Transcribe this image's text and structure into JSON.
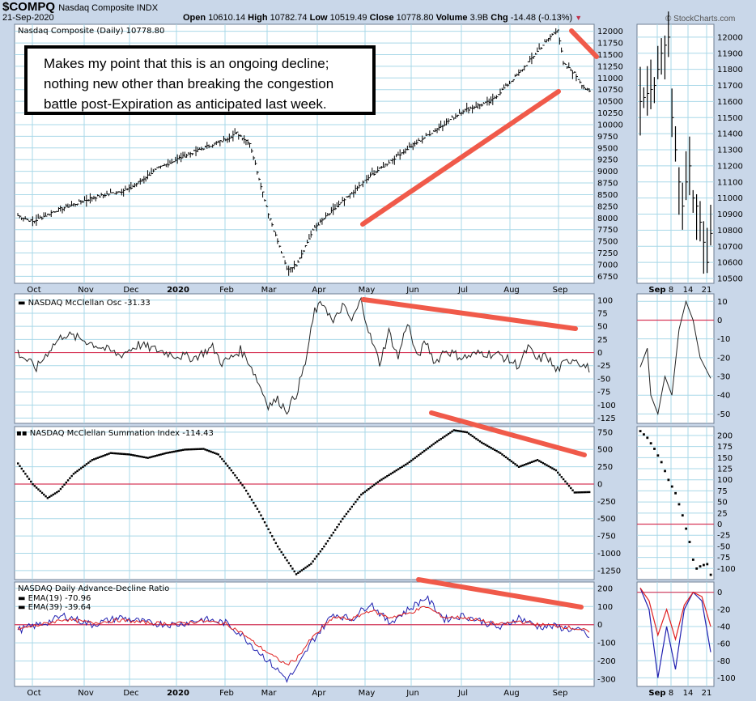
{
  "header": {
    "symbol": "$COMPQ",
    "name": "Nasdaq Composite INDX",
    "date": "21-Sep-2020",
    "open_label": "Open",
    "open": "10610.14",
    "high_label": "High",
    "high": "10782.74",
    "low_label": "Low",
    "low": "10519.49",
    "close_label": "Close",
    "close": "10778.80",
    "volume_label": "Volume",
    "volume": "3.9B",
    "chg_label": "Chg",
    "chg": "-14.48 (-0.13%)",
    "watermark": "© StockCharts.com"
  },
  "annotation": {
    "line1": "Makes my point that this is an ongoing decline;",
    "line2": "nothing new other than breaking the congestion",
    "line3": "battle post-Expiration as anticipated last week."
  },
  "colors": {
    "frame": "#c9d7e9",
    "grid": "#a9d8e8",
    "zero_line": "#d83a5a",
    "trend": "#f05a4a",
    "ema19": "#2020b0",
    "ema39": "#e02020"
  },
  "chart_data": [
    {
      "type": "ohlc",
      "title": "Nasdaq Composite (Daily) 10778.80",
      "x_months": [
        "Oct",
        "Nov",
        "Dec",
        "2020",
        "Feb",
        "Mar",
        "Apr",
        "May",
        "Jun",
        "Jul",
        "Aug",
        "Sep"
      ],
      "yticks": [
        6750,
        7000,
        7250,
        7500,
        7750,
        8000,
        8250,
        8500,
        8750,
        9000,
        9250,
        9500,
        9750,
        10000,
        10250,
        10500,
        10750,
        11000,
        11250,
        11500,
        11750,
        12000
      ],
      "ylim": [
        6600,
        12150
      ],
      "anchors": [
        [
          0,
          8050
        ],
        [
          8,
          7920
        ],
        [
          20,
          8150
        ],
        [
          40,
          8430
        ],
        [
          60,
          8620
        ],
        [
          75,
          9050
        ],
        [
          88,
          9300
        ],
        [
          100,
          9500
        ],
        [
          110,
          9650
        ],
        [
          118,
          9820
        ],
        [
          125,
          9600
        ],
        [
          135,
          8100
        ],
        [
          145,
          6900
        ],
        [
          150,
          7000
        ],
        [
          160,
          7800
        ],
        [
          175,
          8350
        ],
        [
          190,
          8900
        ],
        [
          205,
          9350
        ],
        [
          220,
          9750
        ],
        [
          240,
          10300
        ],
        [
          255,
          10500
        ],
        [
          270,
          11100
        ],
        [
          285,
          11800
        ],
        [
          291,
          12050
        ],
        [
          294,
          11300
        ],
        [
          300,
          11100
        ],
        [
          305,
          10800
        ],
        [
          308,
          10700
        ]
      ]
    },
    {
      "type": "line",
      "title": "NASDAQ McClellan Osc -31.33",
      "yticks": [
        -125,
        -100,
        -75,
        -50,
        -25,
        0,
        25,
        50,
        75,
        100
      ],
      "ylim": [
        -135,
        112
      ],
      "anchors": [
        [
          0,
          0
        ],
        [
          10,
          -30
        ],
        [
          18,
          10
        ],
        [
          25,
          35
        ],
        [
          35,
          25
        ],
        [
          45,
          10
        ],
        [
          55,
          -5
        ],
        [
          65,
          15
        ],
        [
          75,
          5
        ],
        [
          85,
          -5
        ],
        [
          95,
          -10
        ],
        [
          105,
          10
        ],
        [
          110,
          -20
        ],
        [
          115,
          -10
        ],
        [
          120,
          5
        ],
        [
          125,
          -20
        ],
        [
          130,
          -60
        ],
        [
          135,
          -100
        ],
        [
          140,
          -90
        ],
        [
          145,
          -110
        ],
        [
          150,
          -80
        ],
        [
          155,
          -20
        ],
        [
          160,
          80
        ],
        [
          165,
          95
        ],
        [
          170,
          55
        ],
        [
          175,
          90
        ],
        [
          180,
          60
        ],
        [
          185,
          100
        ],
        [
          190,
          30
        ],
        [
          195,
          -20
        ],
        [
          200,
          40
        ],
        [
          205,
          -10
        ],
        [
          210,
          60
        ],
        [
          215,
          -10
        ],
        [
          220,
          20
        ],
        [
          225,
          -20
        ],
        [
          230,
          5
        ],
        [
          240,
          -10
        ],
        [
          250,
          0
        ],
        [
          260,
          -5
        ],
        [
          270,
          -25
        ],
        [
          275,
          10
        ],
        [
          280,
          -15
        ],
        [
          285,
          -5
        ],
        [
          290,
          -35
        ],
        [
          295,
          -20
        ],
        [
          300,
          -10
        ],
        [
          305,
          -25
        ],
        [
          308,
          -31
        ]
      ]
    },
    {
      "type": "scatter",
      "title": "NASDAQ McClellan Summation Index -114.43",
      "yticks": [
        -1250,
        -1000,
        -750,
        -500,
        -250,
        0,
        250,
        500,
        750
      ],
      "ylim": [
        -1380,
        830
      ],
      "anchors": [
        [
          0,
          300
        ],
        [
          8,
          0
        ],
        [
          16,
          -200
        ],
        [
          22,
          -100
        ],
        [
          30,
          150
        ],
        [
          40,
          350
        ],
        [
          50,
          450
        ],
        [
          60,
          430
        ],
        [
          70,
          380
        ],
        [
          80,
          450
        ],
        [
          90,
          500
        ],
        [
          100,
          510
        ],
        [
          108,
          430
        ],
        [
          115,
          200
        ],
        [
          122,
          -50
        ],
        [
          130,
          -400
        ],
        [
          140,
          -900
        ],
        [
          150,
          -1300
        ],
        [
          158,
          -1150
        ],
        [
          165,
          -900
        ],
        [
          175,
          -500
        ],
        [
          185,
          -150
        ],
        [
          195,
          50
        ],
        [
          210,
          300
        ],
        [
          225,
          600
        ],
        [
          235,
          780
        ],
        [
          242,
          750
        ],
        [
          250,
          600
        ],
        [
          260,
          450
        ],
        [
          270,
          250
        ],
        [
          280,
          350
        ],
        [
          290,
          200
        ],
        [
          300,
          -120
        ],
        [
          308,
          -114
        ]
      ]
    },
    {
      "type": "line",
      "title": "NASDAQ Daily Advance-Decline Ratio",
      "series": [
        {
          "name": "EMA(19) -70.96",
          "anchors": [
            [
              0,
              -30
            ],
            [
              15,
              10
            ],
            [
              25,
              50
            ],
            [
              40,
              0
            ],
            [
              55,
              40
            ],
            [
              70,
              10
            ],
            [
              85,
              0
            ],
            [
              100,
              30
            ],
            [
              112,
              10
            ],
            [
              120,
              -50
            ],
            [
              130,
              -150
            ],
            [
              140,
              -250
            ],
            [
              145,
              -300
            ],
            [
              150,
              -250
            ],
            [
              158,
              -100
            ],
            [
              170,
              60
            ],
            [
              180,
              30
            ],
            [
              190,
              120
            ],
            [
              200,
              10
            ],
            [
              210,
              80
            ],
            [
              220,
              150
            ],
            [
              230,
              30
            ],
            [
              240,
              50
            ],
            [
              250,
              20
            ],
            [
              260,
              -20
            ],
            [
              270,
              40
            ],
            [
              280,
              -10
            ],
            [
              290,
              -10
            ],
            [
              300,
              -30
            ],
            [
              305,
              -40
            ],
            [
              308,
              -71
            ]
          ]
        },
        {
          "name": "EMA(39) -39.64",
          "anchors": [
            [
              0,
              -25
            ],
            [
              15,
              5
            ],
            [
              25,
              30
            ],
            [
              40,
              10
            ],
            [
              55,
              25
            ],
            [
              70,
              10
            ],
            [
              85,
              5
            ],
            [
              100,
              20
            ],
            [
              112,
              5
            ],
            [
              120,
              -40
            ],
            [
              130,
              -120
            ],
            [
              140,
              -190
            ],
            [
              145,
              -220
            ],
            [
              150,
              -190
            ],
            [
              158,
              -80
            ],
            [
              170,
              40
            ],
            [
              180,
              30
            ],
            [
              190,
              80
            ],
            [
              200,
              40
            ],
            [
              210,
              60
            ],
            [
              220,
              100
            ],
            [
              230,
              40
            ],
            [
              240,
              40
            ],
            [
              250,
              20
            ],
            [
              260,
              0
            ],
            [
              270,
              20
            ],
            [
              280,
              0
            ],
            [
              290,
              -5
            ],
            [
              300,
              -20
            ],
            [
              305,
              -30
            ],
            [
              308,
              -40
            ]
          ]
        }
      ],
      "yticks": [
        -300,
        -200,
        -100,
        0,
        100,
        200
      ],
      "ylim": [
        -340,
        235
      ]
    }
  ],
  "mini_charts": [
    {
      "yticks": [
        10500,
        10600,
        10700,
        10800,
        10900,
        11000,
        11100,
        11200,
        11300,
        11400,
        11500,
        11600,
        11700,
        11800,
        11900,
        12000
      ],
      "ylim": [
        10470,
        12080
      ],
      "anchors": [
        [
          0,
          11600
        ],
        [
          4,
          11700
        ],
        [
          6,
          11900
        ],
        [
          8,
          12000
        ],
        [
          9,
          11500
        ],
        [
          11,
          11100
        ],
        [
          12,
          10950
        ],
        [
          13,
          11100
        ],
        [
          14,
          11200
        ],
        [
          15,
          11000
        ],
        [
          16,
          10950
        ],
        [
          17,
          10850
        ],
        [
          19,
          10600
        ],
        [
          20,
          10780
        ]
      ]
    },
    {
      "yticks": [
        -50,
        -40,
        -30,
        -20,
        -10,
        0,
        10
      ],
      "ylim": [
        -55,
        14
      ],
      "anchors": [
        [
          0,
          -25
        ],
        [
          2,
          -15
        ],
        [
          3,
          -40
        ],
        [
          5,
          -50
        ],
        [
          7,
          -30
        ],
        [
          9,
          -40
        ],
        [
          11,
          -5
        ],
        [
          13,
          10
        ],
        [
          15,
          0
        ],
        [
          17,
          -20
        ],
        [
          20,
          -31
        ]
      ]
    },
    {
      "yticks": [
        -100,
        -75,
        -50,
        -25,
        0,
        25,
        50,
        75,
        100,
        125,
        150,
        175,
        200
      ],
      "ylim": [
        -125,
        220
      ],
      "anchors": [
        [
          0,
          210
        ],
        [
          2,
          195
        ],
        [
          4,
          170
        ],
        [
          6,
          140
        ],
        [
          8,
          100
        ],
        [
          10,
          70
        ],
        [
          12,
          20
        ],
        [
          14,
          -40
        ],
        [
          15,
          -80
        ],
        [
          16,
          -100
        ],
        [
          17,
          -95
        ],
        [
          18,
          -92
        ],
        [
          19,
          -90
        ],
        [
          20,
          -114
        ]
      ]
    },
    {
      "series": [
        {
          "name": "EMA(19)",
          "anchors": [
            [
              0,
              5
            ],
            [
              2,
              -20
            ],
            [
              4,
              -100
            ],
            [
              6,
              -40
            ],
            [
              8,
              -90
            ],
            [
              10,
              -20
            ],
            [
              12,
              0
            ],
            [
              14,
              -10
            ],
            [
              16,
              -70
            ]
          ]
        },
        {
          "name": "EMA(39)",
          "anchors": [
            [
              0,
              5
            ],
            [
              2,
              -10
            ],
            [
              4,
              -50
            ],
            [
              6,
              -20
            ],
            [
              8,
              -55
            ],
            [
              10,
              -15
            ],
            [
              12,
              0
            ],
            [
              14,
              -5
            ],
            [
              16,
              -40
            ]
          ]
        }
      ],
      "yticks": [
        -100,
        -80,
        -60,
        -40,
        -20,
        0
      ],
      "ylim": [
        -110,
        12
      ]
    }
  ],
  "mini_xlabels": [
    "Sep",
    "8",
    "14",
    "21"
  ]
}
